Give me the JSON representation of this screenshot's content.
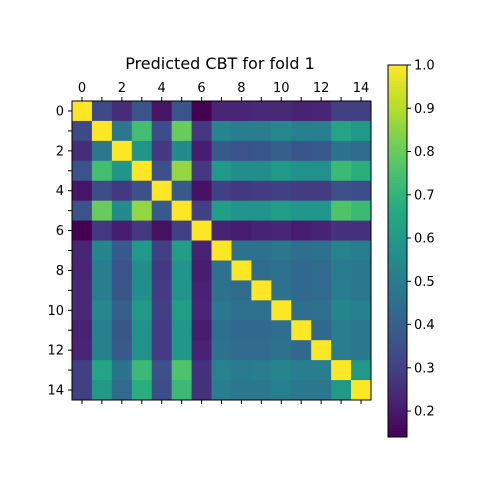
{
  "chart_data": {
    "type": "heatmap",
    "title": "Predicted CBT for fold 1",
    "xlabel": "",
    "ylabel": "",
    "colormap": "viridis",
    "value_range": [
      0.14,
      1.0
    ],
    "x_ticks": [
      "0",
      "2",
      "4",
      "6",
      "8",
      "10",
      "12",
      "14"
    ],
    "y_ticks": [
      "0",
      "2",
      "4",
      "6",
      "8",
      "10",
      "12",
      "14"
    ],
    "colorbar_ticks": [
      "0.2",
      "0.3",
      "0.4",
      "0.5",
      "0.6",
      "0.7",
      "0.8",
      "0.9",
      "1.0"
    ],
    "matrix": [
      [
        1.0,
        0.33,
        0.25,
        0.36,
        0.19,
        0.36,
        0.14,
        0.23,
        0.23,
        0.24,
        0.24,
        0.22,
        0.23,
        0.3,
        0.3
      ],
      [
        0.33,
        1.0,
        0.48,
        0.74,
        0.34,
        0.8,
        0.28,
        0.53,
        0.5,
        0.5,
        0.54,
        0.51,
        0.51,
        0.64,
        0.6
      ],
      [
        0.25,
        0.48,
        1.0,
        0.58,
        0.28,
        0.55,
        0.21,
        0.38,
        0.36,
        0.37,
        0.4,
        0.37,
        0.38,
        0.47,
        0.44
      ],
      [
        0.36,
        0.74,
        0.58,
        1.0,
        0.35,
        0.86,
        0.28,
        0.6,
        0.56,
        0.56,
        0.6,
        0.57,
        0.57,
        0.72,
        0.68
      ],
      [
        0.19,
        0.34,
        0.28,
        0.35,
        1.0,
        0.38,
        0.18,
        0.3,
        0.28,
        0.29,
        0.3,
        0.29,
        0.29,
        0.35,
        0.34
      ],
      [
        0.36,
        0.8,
        0.55,
        0.86,
        0.38,
        1.0,
        0.3,
        0.62,
        0.58,
        0.58,
        0.62,
        0.59,
        0.59,
        0.76,
        0.72
      ],
      [
        0.14,
        0.28,
        0.21,
        0.28,
        0.18,
        0.3,
        1.0,
        0.22,
        0.21,
        0.22,
        0.23,
        0.21,
        0.22,
        0.26,
        0.26
      ],
      [
        0.23,
        0.53,
        0.38,
        0.6,
        0.3,
        0.62,
        0.22,
        1.0,
        0.46,
        0.46,
        0.48,
        0.45,
        0.46,
        0.52,
        0.5
      ],
      [
        0.23,
        0.5,
        0.36,
        0.56,
        0.28,
        0.58,
        0.21,
        0.46,
        1.0,
        0.44,
        0.46,
        0.43,
        0.44,
        0.49,
        0.48
      ],
      [
        0.24,
        0.5,
        0.37,
        0.56,
        0.29,
        0.58,
        0.22,
        0.46,
        0.44,
        1.0,
        0.46,
        0.43,
        0.44,
        0.5,
        0.48
      ],
      [
        0.24,
        0.54,
        0.4,
        0.6,
        0.3,
        0.62,
        0.23,
        0.48,
        0.46,
        0.46,
        1.0,
        0.45,
        0.46,
        0.53,
        0.51
      ],
      [
        0.22,
        0.51,
        0.37,
        0.57,
        0.29,
        0.59,
        0.21,
        0.45,
        0.43,
        0.43,
        0.45,
        1.0,
        0.43,
        0.5,
        0.48
      ],
      [
        0.23,
        0.51,
        0.38,
        0.57,
        0.29,
        0.59,
        0.22,
        0.46,
        0.44,
        0.44,
        0.46,
        0.43,
        1.0,
        0.5,
        0.48
      ],
      [
        0.3,
        0.64,
        0.47,
        0.72,
        0.35,
        0.76,
        0.26,
        0.52,
        0.49,
        0.5,
        0.53,
        0.5,
        0.5,
        1.0,
        0.6
      ],
      [
        0.3,
        0.6,
        0.44,
        0.68,
        0.34,
        0.72,
        0.26,
        0.5,
        0.48,
        0.48,
        0.51,
        0.48,
        0.48,
        0.6,
        1.0
      ]
    ]
  }
}
